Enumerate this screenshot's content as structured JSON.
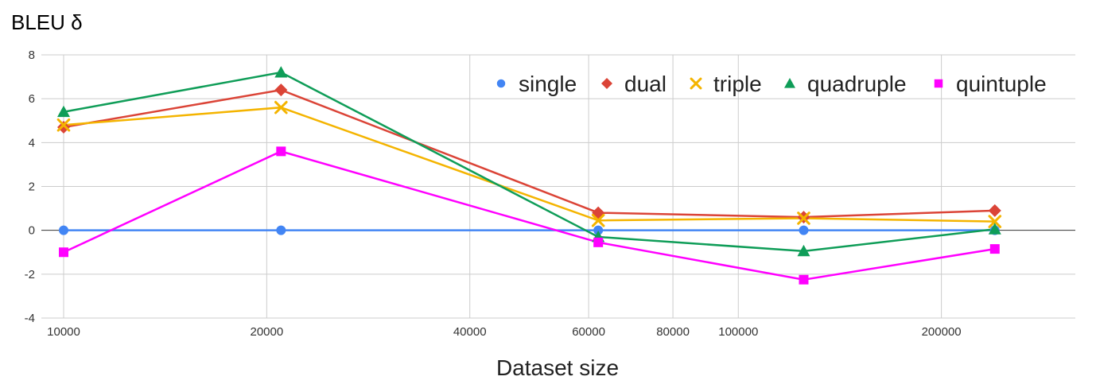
{
  "chart_data": {
    "type": "line",
    "title": "",
    "ylabel": "BLEU δ",
    "xlabel": "Dataset size",
    "x_scale": "log",
    "xlim": [
      10000,
      300000
    ],
    "ylim": [
      -4,
      8
    ],
    "x_ticks": [
      10000,
      20000,
      40000,
      60000,
      80000,
      100000,
      200000
    ],
    "y_ticks": [
      -4,
      -2,
      0,
      2,
      4,
      6,
      8
    ],
    "grid": true,
    "legend_position": "top-right",
    "x": [
      10000,
      21000,
      62000,
      125000,
      240000
    ],
    "series": [
      {
        "name": "single",
        "color": "#4285F4",
        "marker": "circle",
        "values": [
          0,
          0,
          0,
          0,
          0
        ]
      },
      {
        "name": "dual",
        "color": "#DB4437",
        "marker": "diamond",
        "values": [
          4.7,
          6.4,
          0.8,
          0.6,
          0.9
        ]
      },
      {
        "name": "triple",
        "color": "#F4B400",
        "marker": "x",
        "values": [
          4.8,
          5.6,
          0.45,
          0.55,
          0.4
        ]
      },
      {
        "name": "quadruple",
        "color": "#0F9D58",
        "marker": "triangle",
        "values": [
          5.4,
          7.2,
          -0.3,
          -0.95,
          0.05
        ]
      },
      {
        "name": "quintuple",
        "color": "#FF00FF",
        "marker": "square",
        "values": [
          -1.0,
          3.6,
          -0.55,
          -2.25,
          -0.85
        ]
      }
    ]
  }
}
